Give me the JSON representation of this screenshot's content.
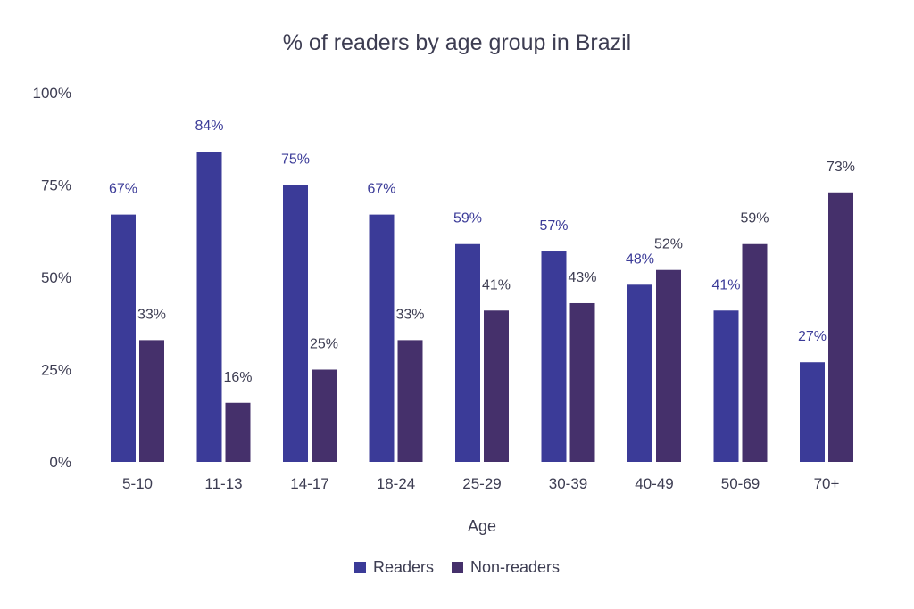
{
  "chart_data": {
    "type": "bar",
    "title": "% of readers by age group in Brazil",
    "xlabel": "Age",
    "ylabel": "",
    "ylim": [
      0,
      100
    ],
    "yticks": [
      "0%",
      "25%",
      "50%",
      "75%",
      "100%"
    ],
    "ytick_values": [
      0,
      25,
      50,
      75,
      100
    ],
    "categories": [
      "5-10",
      "11-13",
      "14-17",
      "18-24",
      "25-29",
      "30-39",
      "40-49",
      "50-69",
      "70+"
    ],
    "series": [
      {
        "name": "Readers",
        "color": "#3b3b98",
        "values": [
          67,
          84,
          75,
          67,
          59,
          57,
          48,
          41,
          27
        ],
        "labels": [
          "67%",
          "84%",
          "75%",
          "67%",
          "59%",
          "57%",
          "48%",
          "41%",
          "27%"
        ]
      },
      {
        "name": "Non-readers",
        "color": "#45306b",
        "values": [
          33,
          16,
          25,
          33,
          41,
          43,
          52,
          59,
          73
        ],
        "labels": [
          "33%",
          "16%",
          "25%",
          "33%",
          "41%",
          "43%",
          "52%",
          "59%",
          "73%"
        ]
      }
    ],
    "grid": false,
    "legend_position": "bottom"
  }
}
